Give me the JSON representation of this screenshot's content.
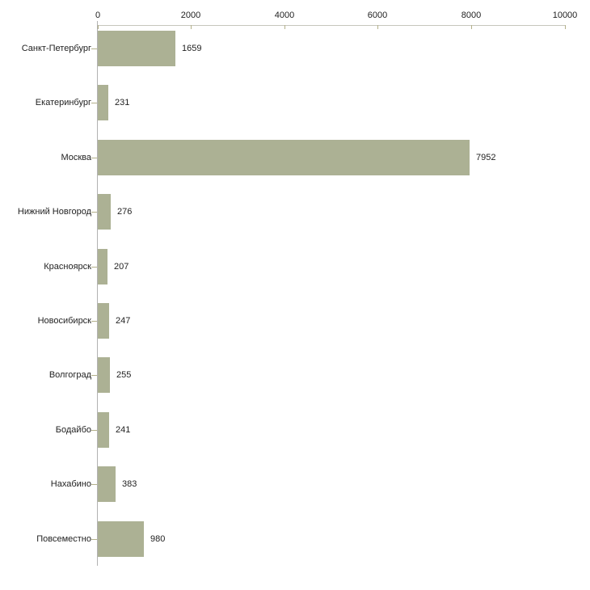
{
  "chart_data": {
    "type": "bar",
    "orientation": "horizontal",
    "title": "",
    "xlabel": "",
    "ylabel": "",
    "categories": [
      "Санкт-Петербург",
      "Екатеринбург",
      "Москва",
      "Нижний Новгород",
      "Красноярск",
      "Новосибирск",
      "Волгоград",
      "Бодайбо",
      "Нахабино",
      "Повсеместно"
    ],
    "values": [
      1659,
      231,
      7952,
      276,
      207,
      247,
      255,
      241,
      383,
      980
    ],
    "value_labels": [
      "1659",
      "231",
      "7952",
      "276",
      "207",
      "247",
      "255",
      "241",
      "383",
      "980"
    ],
    "xlim": [
      0,
      10000
    ],
    "x_ticks": [
      0,
      2000,
      4000,
      6000,
      8000,
      10000
    ],
    "x_tick_labels": [
      "0",
      "2000",
      "4000",
      "6000",
      "8000",
      "10000"
    ],
    "grid": false,
    "legend": false,
    "axis_position": "top",
    "colors": {
      "bar_fill": "#acb194",
      "x_axis_line": "#c6c6bd",
      "y_axis_line": "#b2b2b2",
      "tick_mark": "#b3b08a",
      "text": "#222222",
      "background": "#ffffff"
    }
  }
}
